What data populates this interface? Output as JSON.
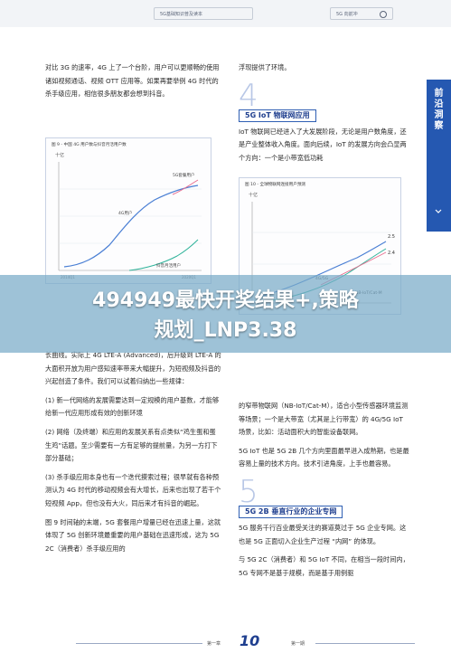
{
  "header": {
    "left_text": "5G基础知识普及读本",
    "right_text": "5G 向前冲"
  },
  "side_tab": {
    "text": "前沿洞察"
  },
  "left_column": {
    "p1": "对比 3G 的速率，4G 上了一个台阶，用户可以更顺畅的使用诸如视频通话、视频 OTT 应用等。如果再要举例 4G 时代的杀手级应用，相信很多朋友都会想到抖音。",
    "chart1": {
      "title": "图 9 - 中国 4G 用户数与抖音月活用户数",
      "ylabel": "十亿",
      "series": [
        {
          "name": "5G套餐用户",
          "color": "#e86c8e"
        },
        {
          "name": "4G用户",
          "color": "#4a7fd4"
        },
        {
          "name": "抖音月活用户",
          "color": "#2fb39a"
        }
      ],
      "x_start": "2014Q1",
      "x_end": "2020Q1"
    },
    "p2": "长曲线。实际上 4G LTE-A (Advanced)，后升级到 LTE-A 的大面积开放为用户感知速率带来大幅提升，为短视频及抖音的兴起创造了条件。我们可以试着归纳出一些规律：",
    "rules": [
      "(1) 新一代网络的发展需要达到一定规模的用户基数，才能够给新一代应用形成有效的创新环境",
      "(2) 网络（及终端）和应用的发展关系有点类似“鸡生蛋和蛋生鸡”话题。至少需要有一方有足够的提前量，为另一方打下部分基础；",
      "(3) 杀手级应用本身也有一个迭代摸索过程；很早就有各种预测认为 4G 时代的移动视频会有大增长，后来也出现了若干个短视频 App，但也没有大火，同后来才有抖音的崛起。"
    ],
    "p3": "图 9 时间轴的末端，5G 套餐用户增量已经在迅速上量，这就体现了 5G 创新环境最重要的用户基础在迅速形成，这为 5G 2C（消费者）杀手级应用的"
  },
  "right_column": {
    "p0": "浮现提供了环境。",
    "sec4_num": "4",
    "sec4_title": "5G IoT 物联网应用",
    "p1": "IoT 物联网已经进入了大发展阶段，无论是用户数角度，还是产业整体收入角度。面向后续，IoT 的发展方向会凸显两个方向：一个是小带宽低功耗",
    "chart2": {
      "title": "图 10 - 全球物联网连接用户预测",
      "ylabel": "十亿",
      "series": [
        {
          "name": "4G/5G",
          "color": "#4a7fd4"
        },
        {
          "name": "NB-IoT/Cat-M",
          "color": "#2fb39a"
        },
        {
          "name": "",
          "color": "#e86c8e"
        }
      ],
      "label_25": "2.5",
      "label_24": "2.4"
    },
    "p2": "的窄带物联网（NB-IoT/Cat-M），适合小型传感器环境监测等场景；一个是大带宽（尤其是上行带宽）的 4G/5G IoT 场景，比如：活动面积大的智能设备联网。",
    "p3": "5G IoT 也是 5G 2B 几个方向里面最早进入成熟期，也是最容易上量的技术方向。技术引进角度，上手也最容易。",
    "sec5_num": "5",
    "sec5_title": "5G 2B 垂直行业的企业专网",
    "p4": "5G 服务千行百业最受关注的赛道莫过于 5G 企业专网。这也是 5G 正面切入企业生产过程 “内网” 的体现。",
    "p5": "与 5G 2C（消费者）和 5G IoT 不同，在相当一段时间内，5G 专网不是基于规模，而是基于用例驱"
  },
  "banner": {
    "line1": "494949最快开奖结果+,策略",
    "line2": "规划_LNP3.38"
  },
  "footer": {
    "left": "第一章",
    "page_number": "10",
    "right": "第一期"
  }
}
